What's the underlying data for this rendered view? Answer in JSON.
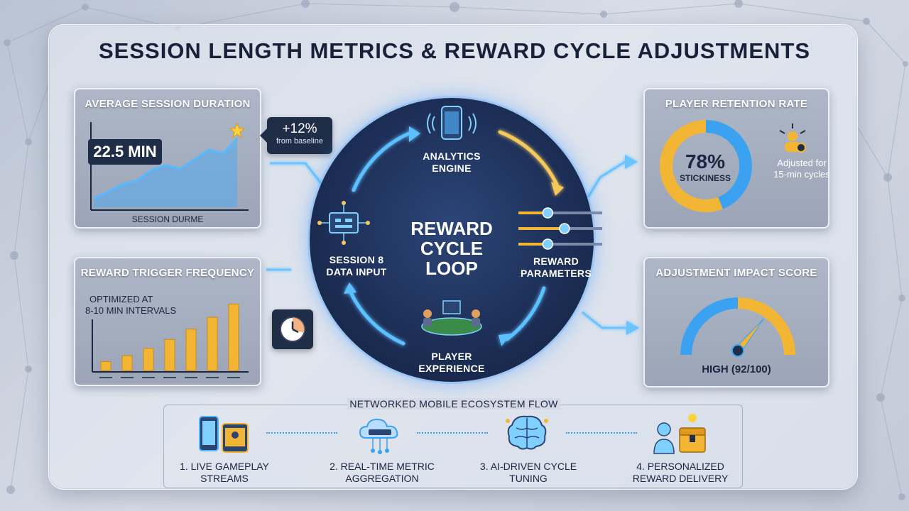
{
  "title": "SESSION LENGTH METRICS & REWARD CYCLE ADJUSTMENTS",
  "session_panel": {
    "title": "AVERAGE SESSION DURATION",
    "value": "22.5 MIN",
    "axis_label": "SESSION DURME",
    "trend": [
      0.12,
      0.2,
      0.3,
      0.35,
      0.48,
      0.55,
      0.5,
      0.62,
      0.75,
      0.7,
      0.9
    ]
  },
  "callout": {
    "value": "+12%",
    "note": "from baseline"
  },
  "trigger_panel": {
    "title": "REWARD TRIGGER FREQUENCY",
    "note_line1": "OPTIMIZED AT",
    "note_line2": "8-10 MIN INTERVALS",
    "bars": [
      0.12,
      0.2,
      0.3,
      0.42,
      0.56,
      0.72,
      0.9
    ]
  },
  "loop": {
    "center_line1": "REWARD",
    "center_line2": "CYCLE",
    "center_line3": "LOOP",
    "analytics_line1": "ANALYTICS",
    "analytics_line2": "ENGINE",
    "input_line1": "SESSION 8",
    "input_line2": "DATA INPUT",
    "params_line1": "REWARD",
    "params_line2": "PARAMETERS",
    "player_line1": "PLAYER",
    "player_line2": "EXPERIENCE",
    "sliders": [
      0.35,
      0.55,
      0.35
    ]
  },
  "retention_panel": {
    "title": "PLAYER RETENTION RATE",
    "value": "78%",
    "label": "STICKINESS",
    "fraction": 0.78,
    "note_line1": "Adjusted for",
    "note_line2": "15-min cycles"
  },
  "impact_panel": {
    "title": "ADJUSTMENT IMPACT SCORE",
    "score": "HIGH (92/100)",
    "fraction": 0.92
  },
  "flow": {
    "title": "NETWORKED MOBILE ECOSYSTEM FLOW",
    "steps": [
      {
        "line1": "1. LIVE GAMEPLAY",
        "line2": "STREAMS"
      },
      {
        "line1": "2. REAL-TIME METRIC",
        "line2": "AGGREGATION"
      },
      {
        "line1": "3. AI-DRIVEN CYCLE",
        "line2": "TUNING"
      },
      {
        "line1": "4. PERSONALIZED",
        "line2": "REWARD DELIVERY"
      }
    ]
  },
  "colors": {
    "navy": "#1f2d47",
    "glow_blue": "#4fb4ff",
    "gold": "#f2b634",
    "panel": "#a3adbe"
  }
}
